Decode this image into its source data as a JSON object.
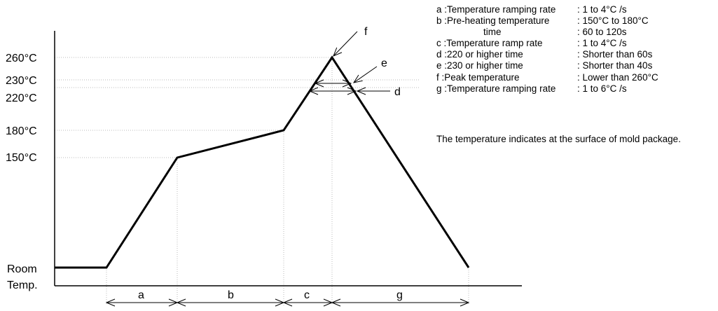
{
  "y_labels": {
    "t260": "260°C",
    "t230": "230°C",
    "t220": "220°C",
    "t180": "180°C",
    "t150": "150°C",
    "room_line1": "Room",
    "room_line2": "Temp."
  },
  "segments": {
    "a": "a",
    "b": "b",
    "c": "c",
    "g": "g"
  },
  "callouts": {
    "d": "d",
    "e": "e",
    "f": "f"
  },
  "legend": [
    {
      "key": "a :Temperature ramping rate",
      "value": ": 1 to 4°C /s"
    },
    {
      "key": "b :Pre-heating temperature",
      "value": ": 150°C to 180°C"
    },
    {
      "key": "time",
      "value": ": 60 to 120s",
      "indent": true
    },
    {
      "key": "c :Temperature ramp rate",
      "value": ": 1 to 4°C /s"
    },
    {
      "key": "d :220 or higher time",
      "value": ": Shorter than 60s"
    },
    {
      "key": "e :230 or higher time",
      "value": ": Shorter than 40s"
    },
    {
      "key": "f :Peak temperature",
      "value": ": Lower than 260°C"
    },
    {
      "key": "g :Temperature ramping rate",
      "value": ": 1 to 6°C /s"
    }
  ],
  "note": "The temperature indicates at the surface of mold package.",
  "profile": [
    {
      "time": 0,
      "temp": "room"
    },
    {
      "time": 1,
      "temp": "room"
    },
    {
      "time": 2,
      "temp": 150
    },
    {
      "time": 3,
      "temp": 180
    },
    {
      "time": 4,
      "temp": 260
    },
    {
      "time": 5,
      "temp": "room"
    }
  ]
}
